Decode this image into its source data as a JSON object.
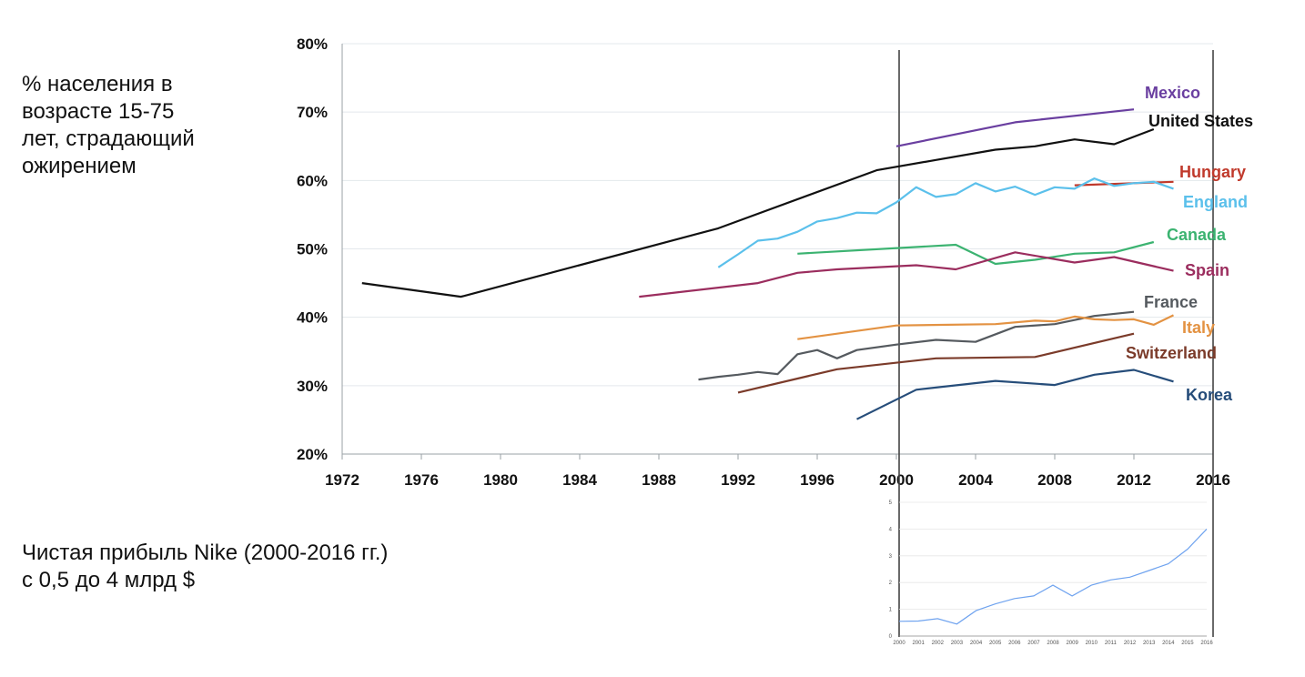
{
  "captions": {
    "obesity": [
      "% населения в",
      "возрасте 15-75",
      "лет, страдающий",
      "ожирением"
    ],
    "nike": [
      "Чистая прибыль Nike (2000-2016 гг.)",
      "с 0,5 до 4 млрд $"
    ]
  },
  "chart_data": [
    {
      "type": "line",
      "title": "",
      "xlabel": "",
      "ylabel": "",
      "xlim": [
        1972,
        2016
      ],
      "ylim": [
        20,
        80
      ],
      "x_ticks": [
        "1972",
        "1976",
        "1980",
        "1984",
        "1988",
        "1992",
        "1996",
        "2000",
        "2004",
        "2008",
        "2012",
        "2016"
      ],
      "y_ticks": [
        "20%",
        "30%",
        "40%",
        "50%",
        "60%",
        "70%",
        "80%"
      ],
      "grid": "horizontal",
      "reference_lines_x": [
        2000,
        2016
      ],
      "series": [
        {
          "name": "Mexico",
          "color": "#6a3fa0",
          "x": [
            2000,
            2006,
            2012
          ],
          "y": [
            65.0,
            68.5,
            70.4
          ]
        },
        {
          "name": "United States",
          "color": "#111111",
          "x": [
            1973,
            1978,
            1991,
            1999,
            2002,
            2005,
            2007,
            2009,
            2011,
            2013
          ],
          "y": [
            45.0,
            43.0,
            53.0,
            61.5,
            63.0,
            64.5,
            65.0,
            66.0,
            65.3,
            67.5
          ]
        },
        {
          "name": "Hungary",
          "color": "#c0392b",
          "x": [
            2009,
            2014
          ],
          "y": [
            59.3,
            59.8
          ]
        },
        {
          "name": "England",
          "color": "#5bc0eb",
          "x": [
            1991,
            1992,
            1993,
            1994,
            1995,
            1996,
            1997,
            1998,
            1999,
            2000,
            2001,
            2002,
            2003,
            2004,
            2005,
            2006,
            2007,
            2008,
            2009,
            2010,
            2011,
            2012,
            2013,
            2014
          ],
          "y": [
            47.3,
            49.2,
            51.2,
            51.5,
            52.5,
            54.0,
            54.5,
            55.3,
            55.2,
            56.8,
            59.0,
            57.6,
            58.0,
            59.6,
            58.4,
            59.1,
            57.9,
            59.0,
            58.8,
            60.3,
            59.2,
            59.6,
            59.8,
            58.8
          ]
        },
        {
          "name": "Canada",
          "color": "#3cb371",
          "x": [
            1995,
            2003,
            2005,
            2007,
            2009,
            2011,
            2013
          ],
          "y": [
            49.3,
            50.6,
            47.8,
            48.4,
            49.3,
            49.5,
            51.0
          ]
        },
        {
          "name": "Spain",
          "color": "#9b2d5e",
          "x": [
            1987,
            1993,
            1995,
            1997,
            2001,
            2003,
            2006,
            2009,
            2011,
            2014
          ],
          "y": [
            43.0,
            45.0,
            46.5,
            47.0,
            47.6,
            47.0,
            49.5,
            48.0,
            48.8,
            46.8
          ]
        },
        {
          "name": "France",
          "color": "#555a5f",
          "x": [
            1990,
            1991,
            1992,
            1993,
            1994,
            1995,
            1996,
            1997,
            1998,
            2000,
            2002,
            2004,
            2006,
            2008,
            2010,
            2012
          ],
          "y": [
            30.9,
            31.3,
            31.6,
            32.0,
            31.7,
            34.6,
            35.2,
            34.0,
            35.2,
            36.0,
            36.7,
            36.4,
            38.6,
            39.0,
            40.2,
            40.8
          ]
        },
        {
          "name": "Italy",
          "color": "#e39242",
          "x": [
            1995,
            2000,
            2005,
            2007,
            2008,
            2009,
            2010,
            2011,
            2012,
            2013,
            2014
          ],
          "y": [
            36.8,
            38.8,
            39.0,
            39.5,
            39.4,
            40.1,
            39.7,
            39.6,
            39.7,
            38.9,
            40.3
          ]
        },
        {
          "name": "Switzerland",
          "color": "#7b3b2a",
          "x": [
            1992,
            1997,
            2002,
            2007,
            2012
          ],
          "y": [
            29.0,
            32.4,
            34.0,
            34.2,
            37.6
          ]
        },
        {
          "name": "Korea",
          "color": "#264d7a",
          "x": [
            1998,
            2001,
            2005,
            2008,
            2010,
            2012,
            2014
          ],
          "y": [
            25.1,
            29.4,
            30.7,
            30.1,
            31.6,
            32.3,
            30.6
          ]
        }
      ]
    },
    {
      "type": "line",
      "title": "",
      "xlabel": "",
      "ylabel": "",
      "ylim": [
        0,
        5
      ],
      "y_ticks": [
        "0",
        "1",
        "2",
        "3",
        "4",
        "5"
      ],
      "categories": [
        "2000",
        "2001",
        "2002",
        "2003",
        "2004",
        "2005",
        "2006",
        "2007",
        "2008",
        "2009",
        "2010",
        "2011",
        "2012",
        "2013",
        "2014",
        "2015",
        "2016"
      ],
      "grid": "horizontal",
      "series": [
        {
          "color": "#6fa3ef",
          "values": [
            0.55,
            0.56,
            0.65,
            0.45,
            0.95,
            1.2,
            1.4,
            1.5,
            1.9,
            1.5,
            1.9,
            2.1,
            2.2,
            2.45,
            2.7,
            3.25,
            4.0
          ]
        }
      ]
    }
  ]
}
